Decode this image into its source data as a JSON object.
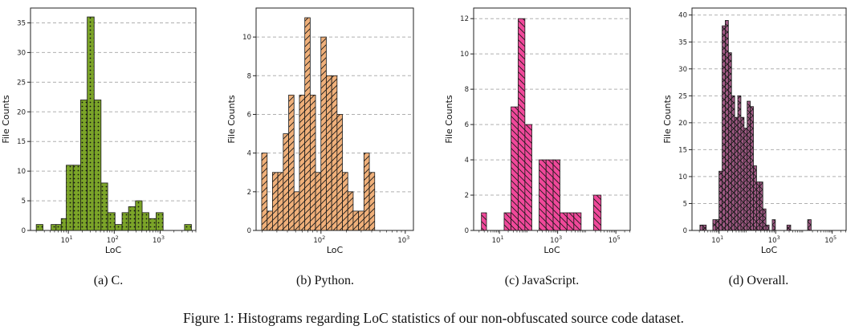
{
  "figure_caption": "Figure 1: Histograms regarding LoC statistics of our non-obfuscated source code dataset.",
  "chart_data": [
    {
      "type": "bar",
      "caption": "(a) C.",
      "xlabel": "LoC",
      "ylabel": "File Counts",
      "xscale": "log",
      "xlim": [
        1.5,
        6000
      ],
      "ylim": [
        0,
        37.5
      ],
      "xticks": [
        {
          "value": 10,
          "base": "10",
          "exp": "1"
        },
        {
          "value": 100,
          "base": "10",
          "exp": "2"
        },
        {
          "value": 1000,
          "base": "10",
          "exp": "3"
        }
      ],
      "yticks": [
        0,
        5,
        10,
        15,
        20,
        25,
        30,
        35
      ],
      "grid": "horizontal dashed",
      "color": "#7ba428",
      "hatch": "dots",
      "bins": [
        {
          "x0": 2.0,
          "x1": 2.8,
          "value": 1
        },
        {
          "x0": 2.8,
          "x1": 4.2,
          "value": 0
        },
        {
          "x0": 4.2,
          "x1": 5.4,
          "value": 1
        },
        {
          "x0": 5.4,
          "x1": 7.0,
          "value": 1
        },
        {
          "x0": 7.0,
          "x1": 9.0,
          "value": 2
        },
        {
          "x0": 9.0,
          "x1": 12.8,
          "value": 11
        },
        {
          "x0": 12.8,
          "x1": 18.5,
          "value": 11
        },
        {
          "x0": 18.5,
          "x1": 25.8,
          "value": 22
        },
        {
          "x0": 25.8,
          "x1": 36.5,
          "value": 36
        },
        {
          "x0": 36.5,
          "x1": 51.5,
          "value": 22
        },
        {
          "x0": 51.5,
          "x1": 72.0,
          "value": 8
        },
        {
          "x0": 72.0,
          "x1": 104.0,
          "value": 3
        },
        {
          "x0": 104.0,
          "x1": 148.0,
          "value": 1
        },
        {
          "x0": 148.0,
          "x1": 205.0,
          "value": 3
        },
        {
          "x0": 205.0,
          "x1": 290.0,
          "value": 4
        },
        {
          "x0": 290.0,
          "x1": 405.0,
          "value": 5
        },
        {
          "x0": 405.0,
          "x1": 570.0,
          "value": 3
        },
        {
          "x0": 570.0,
          "x1": 815.0,
          "value": 2
        },
        {
          "x0": 815.0,
          "x1": 1160.0,
          "value": 3
        },
        {
          "x0": 1160.0,
          "x1": 3400.0,
          "value": 0
        },
        {
          "x0": 3400.0,
          "x1": 4800.0,
          "value": 1
        }
      ]
    },
    {
      "type": "bar",
      "caption": "(b) Python.",
      "xlabel": "LoC",
      "ylabel": "File Counts",
      "xscale": "log",
      "xlim": [
        17,
        1250
      ],
      "ylim": [
        0,
        11.5
      ],
      "xticks": [
        {
          "value": 100,
          "base": "10",
          "exp": "2"
        },
        {
          "value": 1000,
          "base": "10",
          "exp": "3"
        }
      ],
      "yticks": [
        0,
        2,
        4,
        6,
        8,
        10
      ],
      "grid": "horizontal dashed",
      "color": "#f0b07a",
      "hatch": "diagonal",
      "bins": [
        {
          "x0": 19.8,
          "x1": 23.0,
          "value": 4
        },
        {
          "x0": 23.0,
          "x1": 26.6,
          "value": 1
        },
        {
          "x0": 26.6,
          "x1": 30.8,
          "value": 3
        },
        {
          "x0": 30.8,
          "x1": 35.7,
          "value": 3
        },
        {
          "x0": 35.7,
          "x1": 41.4,
          "value": 5
        },
        {
          "x0": 41.4,
          "x1": 47.9,
          "value": 7
        },
        {
          "x0": 47.9,
          "x1": 55.5,
          "value": 2
        },
        {
          "x0": 55.5,
          "x1": 64.3,
          "value": 7
        },
        {
          "x0": 64.3,
          "x1": 74.5,
          "value": 11
        },
        {
          "x0": 74.5,
          "x1": 86.2,
          "value": 7
        },
        {
          "x0": 86.2,
          "x1": 99.9,
          "value": 3
        },
        {
          "x0": 99.9,
          "x1": 115.7,
          "value": 10
        },
        {
          "x0": 115.7,
          "x1": 134.0,
          "value": 8
        },
        {
          "x0": 134.0,
          "x1": 155.2,
          "value": 8
        },
        {
          "x0": 155.2,
          "x1": 179.7,
          "value": 6
        },
        {
          "x0": 179.7,
          "x1": 208.2,
          "value": 3
        },
        {
          "x0": 208.2,
          "x1": 241.1,
          "value": 2
        },
        {
          "x0": 241.1,
          "x1": 279.3,
          "value": 1
        },
        {
          "x0": 279.3,
          "x1": 323.5,
          "value": 1
        },
        {
          "x0": 323.5,
          "x1": 374.8,
          "value": 4
        },
        {
          "x0": 374.8,
          "x1": 434.0,
          "value": 3
        }
      ]
    },
    {
      "type": "bar",
      "caption": "(c) JavaScript.",
      "xlabel": "LoC",
      "ylabel": "File Counts",
      "xscale": "log",
      "xlim": [
        1.3,
        310000
      ],
      "ylim": [
        0,
        12.6
      ],
      "xticks": [
        {
          "value": 10,
          "base": "10",
          "exp": "1"
        },
        {
          "value": 1000,
          "base": "10",
          "exp": "3"
        },
        {
          "value": 100000,
          "base": "10",
          "exp": "5"
        }
      ],
      "yticks": [
        0,
        2,
        4,
        6,
        8,
        10,
        12
      ],
      "grid": "horizontal dashed",
      "color": "#f0489a",
      "hatch": "backslash",
      "bins": [
        {
          "x0": 2.4,
          "x1": 3.6,
          "value": 1
        },
        {
          "x0": 3.6,
          "x1": 14.5,
          "value": 0
        },
        {
          "x0": 14.5,
          "x1": 25.0,
          "value": 1
        },
        {
          "x0": 25.0,
          "x1": 44.0,
          "value": 7
        },
        {
          "x0": 44.0,
          "x1": 75.0,
          "value": 12
        },
        {
          "x0": 75.0,
          "x1": 130.0,
          "value": 6
        },
        {
          "x0": 130.0,
          "x1": 230.0,
          "value": 0
        },
        {
          "x0": 230.0,
          "x1": 400.0,
          "value": 4
        },
        {
          "x0": 400.0,
          "x1": 700.0,
          "value": 4
        },
        {
          "x0": 700.0,
          "x1": 1200.0,
          "value": 4
        },
        {
          "x0": 1200.0,
          "x1": 2100.0,
          "value": 1
        },
        {
          "x0": 2100.0,
          "x1": 3600.0,
          "value": 1
        },
        {
          "x0": 3600.0,
          "x1": 6400.0,
          "value": 1
        },
        {
          "x0": 6400.0,
          "x1": 17000.0,
          "value": 0
        },
        {
          "x0": 17000.0,
          "x1": 31000.0,
          "value": 2
        }
      ]
    },
    {
      "type": "bar",
      "caption": "(d) Overall.",
      "xlabel": "LoC",
      "ylabel": "File Counts",
      "xscale": "log",
      "xlim": [
        1.1,
        310000
      ],
      "ylim": [
        0,
        41.3
      ],
      "xticks": [
        {
          "value": 10,
          "base": "10",
          "exp": "1"
        },
        {
          "value": 1000,
          "base": "10",
          "exp": "3"
        },
        {
          "value": 100000,
          "base": "10",
          "exp": "5"
        }
      ],
      "yticks": [
        0,
        5,
        10,
        15,
        20,
        25,
        30,
        35,
        40
      ],
      "grid": "horizontal dashed",
      "color": "#a15a85",
      "hatch": "cross",
      "bins": [
        {
          "x0": 2.1,
          "x1": 2.7,
          "value": 1
        },
        {
          "x0": 2.7,
          "x1": 3.5,
          "value": 1
        },
        {
          "x0": 3.5,
          "x1": 6.0,
          "value": 0
        },
        {
          "x0": 6.0,
          "x1": 7.7,
          "value": 2
        },
        {
          "x0": 7.7,
          "x1": 9.9,
          "value": 2
        },
        {
          "x0": 9.9,
          "x1": 12.8,
          "value": 11
        },
        {
          "x0": 12.8,
          "x1": 16.5,
          "value": 38
        },
        {
          "x0": 16.5,
          "x1": 21.3,
          "value": 39
        },
        {
          "x0": 21.3,
          "x1": 27.5,
          "value": 33
        },
        {
          "x0": 27.5,
          "x1": 35.5,
          "value": 25
        },
        {
          "x0": 35.5,
          "x1": 45.8,
          "value": 21
        },
        {
          "x0": 45.8,
          "x1": 59.0,
          "value": 25
        },
        {
          "x0": 59.0,
          "x1": 76.2,
          "value": 21
        },
        {
          "x0": 76.2,
          "x1": 98.3,
          "value": 19
        },
        {
          "x0": 98.3,
          "x1": 126.8,
          "value": 24
        },
        {
          "x0": 126.8,
          "x1": 163.6,
          "value": 23
        },
        {
          "x0": 163.6,
          "x1": 211.1,
          "value": 12
        },
        {
          "x0": 211.1,
          "x1": 272.4,
          "value": 9
        },
        {
          "x0": 272.4,
          "x1": 351.5,
          "value": 9
        },
        {
          "x0": 351.5,
          "x1": 453.6,
          "value": 4
        },
        {
          "x0": 453.6,
          "x1": 585.3,
          "value": 1
        },
        {
          "x0": 585.3,
          "x1": 755.2,
          "value": 0
        },
        {
          "x0": 755.2,
          "x1": 974.5,
          "value": 2
        },
        {
          "x0": 974.5,
          "x1": 2500.0,
          "value": 0
        },
        {
          "x0": 2500.0,
          "x1": 3400.0,
          "value": 1
        },
        {
          "x0": 3400.0,
          "x1": 13500.0,
          "value": 0
        },
        {
          "x0": 13500.0,
          "x1": 18000.0,
          "value": 2
        }
      ]
    }
  ]
}
